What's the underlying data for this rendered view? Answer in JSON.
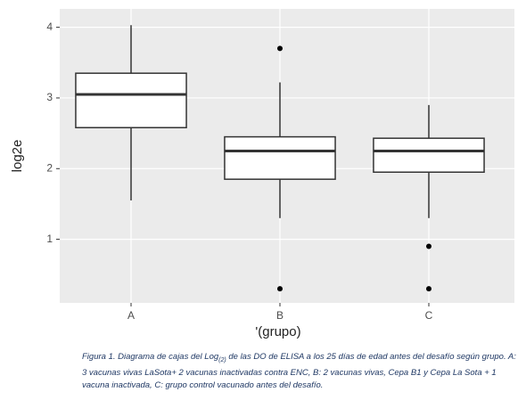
{
  "chart_data": {
    "type": "boxplot",
    "x_label": "'(grupo)",
    "y_label": "log2e",
    "categories": [
      "A",
      "B",
      "C"
    ],
    "boxes": [
      {
        "low": 1.55,
        "q1": 2.58,
        "median": 3.05,
        "q3": 3.35,
        "high": 4.03,
        "outliers": []
      },
      {
        "low": 1.3,
        "q1": 1.85,
        "median": 2.25,
        "q3": 2.45,
        "high": 3.22,
        "outliers": [
          3.7,
          0.3
        ]
      },
      {
        "low": 1.3,
        "q1": 1.95,
        "median": 2.25,
        "q3": 2.43,
        "high": 2.9,
        "outliers": [
          0.9,
          0.3
        ]
      }
    ],
    "ylim": [
      0.1,
      4.26
    ],
    "yticks": [
      1,
      2,
      3,
      4
    ],
    "grid": true,
    "color": "#ffffff",
    "caption": [
      "Figura 1. Diagrama de cajas del Log",
      "(2)",
      " de las DO de ELISA a los 25 días de edad antes del desafío según grupo. A: 3 vacunas vivas LaSota+ 2 vacunas inactivadas contra ENC,  B: 2 vacunas vivas, Cepa B1 y Cepa La Sota + 1 vacuna inactivada, C: grupo control vacunado antes del desafío."
    ]
  }
}
